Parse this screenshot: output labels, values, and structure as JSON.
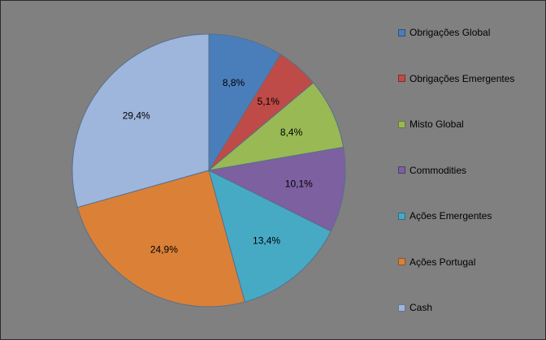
{
  "chart_data": {
    "type": "pie",
    "title": "",
    "slices": [
      {
        "name": "Obrigações Global",
        "value": 8.8,
        "label": "8,8%",
        "color": "#4a7ebb"
      },
      {
        "name": "Obrigações Emergentes",
        "value": 5.1,
        "label": "5,1%",
        "color": "#be4b48"
      },
      {
        "name": "Misto Global",
        "value": 8.4,
        "label": "8,4%",
        "color": "#98b954"
      },
      {
        "name": "Commodities",
        "value": 10.1,
        "label": "10,1%",
        "color": "#7d60a0"
      },
      {
        "name": "Ações Emergentes",
        "value": 13.4,
        "label": "13,4%",
        "color": "#46aac5"
      },
      {
        "name": "Ações Portugal",
        "value": 24.9,
        "label": "24,9%",
        "color": "#da8137"
      },
      {
        "name": "Cash",
        "value": 29.4,
        "label": "29,4%",
        "color": "#9eb5dc"
      }
    ],
    "legend_position": "right",
    "start_angle": "12 o'clock",
    "direction": "clockwise"
  },
  "colors": {
    "plot_background": "#808080",
    "slice_outline": "#5a6f8a"
  }
}
